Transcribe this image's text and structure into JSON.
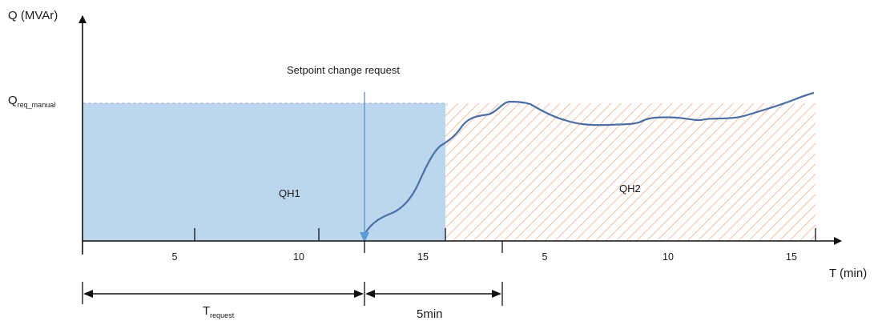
{
  "axes": {
    "y_label": "Q (MVAr)",
    "x_label": "T (min)",
    "q_symbol": "Q",
    "q_subscript": "req_manual"
  },
  "annotation": {
    "setpoint_label": "Setpoint change request"
  },
  "regions": {
    "qh1_label": "QH1",
    "qh2_label": "QH2"
  },
  "ticks": {
    "qh1": [
      "5",
      "10",
      "15"
    ],
    "qh2": [
      "5",
      "10",
      "15"
    ]
  },
  "intervals": {
    "t_request_symbol": "T",
    "t_request_subscript": "request",
    "five_min_label": "5min"
  },
  "colors": {
    "qh1_fill": "#bcd6ee",
    "qh2_hatch": "#f4c2ad",
    "curve": "#4a6fa5",
    "axis": "#111111",
    "setpoint_line": "#5b9bd5"
  }
}
